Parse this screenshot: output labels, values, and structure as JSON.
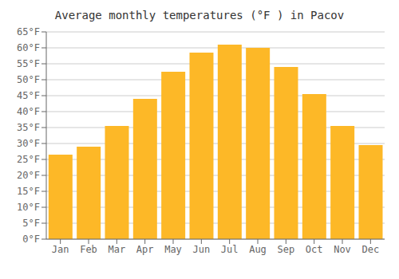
{
  "chart_data": {
    "type": "bar",
    "title": "Average monthly temperatures (°F ) in Pacov",
    "categories": [
      "Jan",
      "Feb",
      "Mar",
      "Apr",
      "May",
      "Jun",
      "Jul",
      "Aug",
      "Sep",
      "Oct",
      "Nov",
      "Dec"
    ],
    "values": [
      26.5,
      29.0,
      35.5,
      44.0,
      52.5,
      58.5,
      61.0,
      60.0,
      54.0,
      45.5,
      35.5,
      29.5
    ],
    "color": "#FDB827",
    "ylim": [
      0,
      65
    ],
    "yticks": [
      {
        "value": 0,
        "label": "0°F"
      },
      {
        "value": 5,
        "label": "5°F"
      },
      {
        "value": 10,
        "label": "10°F"
      },
      {
        "value": 15,
        "label": "15°F"
      },
      {
        "value": 20,
        "label": "20°F"
      },
      {
        "value": 25,
        "label": "25°F"
      },
      {
        "value": 30,
        "label": "30°F"
      },
      {
        "value": 35,
        "label": "35°F"
      },
      {
        "value": 40,
        "label": "40°F"
      },
      {
        "value": 45,
        "label": "45°F"
      },
      {
        "value": 50,
        "label": "50°F"
      },
      {
        "value": 55,
        "label": "55°F"
      },
      {
        "value": 60,
        "label": "60°F"
      },
      {
        "value": 65,
        "label": "65°F"
      }
    ],
    "grid": true
  }
}
